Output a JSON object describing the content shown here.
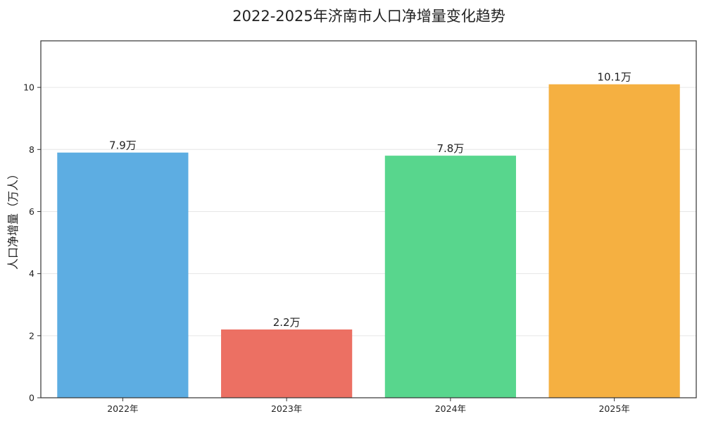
{
  "chart_data": {
    "type": "bar",
    "title": "2022-2025年济南市人口净增量变化趋势",
    "xlabel": "",
    "ylabel": "人口净增量（万人）",
    "categories": [
      "2022年",
      "2023年",
      "2024年",
      "2025年"
    ],
    "values": [
      7.9,
      2.2,
      7.8,
      10.1
    ],
    "data_labels": [
      "7.9万",
      "2.2万",
      "7.8万",
      "10.1万"
    ],
    "colors": [
      "#5dade2",
      "#ec7063",
      "#58d68d",
      "#f5b041"
    ],
    "ylim": [
      0,
      11.5
    ],
    "yticks": [
      0,
      2,
      4,
      6,
      8,
      10
    ],
    "grid": true,
    "legend": "none"
  }
}
